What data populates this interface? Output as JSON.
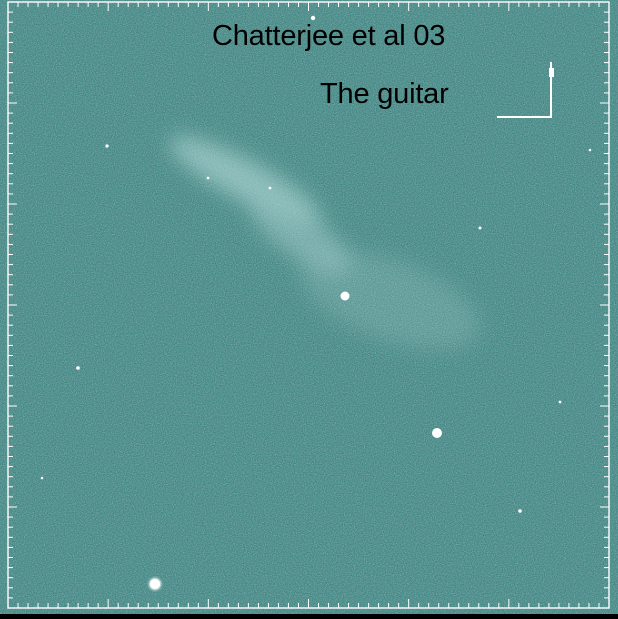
{
  "image": {
    "background_color": "#4f8f8c",
    "frame_color": "#ffffff",
    "star_color": "#ffffff",
    "nebula_color": "#bfe3df"
  },
  "labels": {
    "author": "Chatterjee et al 03",
    "object": "The guitar"
  }
}
